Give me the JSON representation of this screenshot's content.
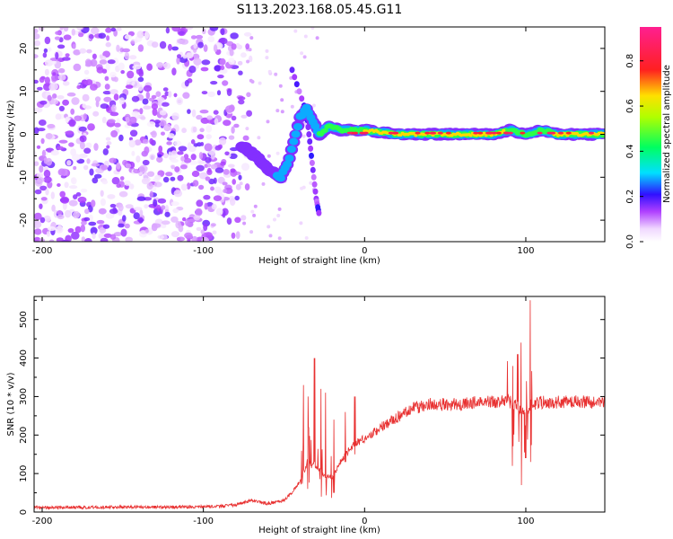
{
  "title": "S113.2023.168.05.45.G11",
  "chart_data": [
    {
      "type": "heatmap",
      "xlabel": "Height of straight line (km)",
      "ylabel": "Frequency (Hz)",
      "xlim": [
        -205,
        149
      ],
      "ylim": [
        -25,
        25
      ],
      "x_ticks": [
        -200,
        -100,
        0,
        100
      ],
      "x_tick_labels": [
        "-200",
        "-100",
        "0",
        "100"
      ],
      "y_ticks": [
        -20,
        -10,
        0,
        10,
        20
      ],
      "y_tick_labels": [
        "-20",
        "-10",
        "0",
        "10",
        "20"
      ],
      "colorbar": {
        "label": "Normalized spectral amplitude",
        "range": [
          0,
          0.95
        ],
        "ticks": [
          0,
          0.2,
          0.4,
          0.6,
          0.8
        ],
        "tick_labels": [
          "0.0",
          "0.2",
          "0.4",
          "0.6",
          "0.8"
        ],
        "colormap": "rainbow (white→violet→blue→cyan→green→yellow→red→pink)"
      },
      "features": {
        "noise_region_x": [
          -205,
          -78
        ],
        "noise_amplitude_range": [
          0.02,
          0.18
        ],
        "tone_trace": [
          [
            -82,
            -1,
            0.12
          ],
          [
            -75,
            -3,
            0.18
          ],
          [
            -68,
            -5,
            0.22
          ],
          [
            -60,
            -8,
            0.25
          ],
          [
            -52,
            -10,
            0.3
          ],
          [
            -48,
            -7,
            0.3
          ],
          [
            -44,
            -2,
            0.32
          ],
          [
            -40,
            4,
            0.35
          ],
          [
            -36,
            6,
            0.35
          ],
          [
            -32,
            3,
            0.4
          ],
          [
            -28,
            0,
            0.45
          ],
          [
            -22,
            2,
            0.5
          ],
          [
            -15,
            1,
            0.55
          ],
          [
            0,
            1,
            0.65
          ],
          [
            20,
            0,
            0.75
          ],
          [
            40,
            0,
            0.8
          ],
          [
            60,
            0,
            0.8
          ],
          [
            80,
            0,
            0.75
          ],
          [
            90,
            1,
            0.6
          ],
          [
            100,
            0,
            0.6
          ],
          [
            110,
            1,
            0.55
          ],
          [
            120,
            0,
            0.7
          ],
          [
            140,
            0,
            0.75
          ],
          [
            149,
            0,
            0.7
          ]
        ],
        "side_branch": [
          [
            -45,
            15
          ],
          [
            -36,
            5
          ],
          [
            -33,
            -5
          ],
          [
            -30,
            -15
          ],
          [
            -28,
            -19
          ]
        ]
      }
    },
    {
      "type": "line",
      "xlabel": "Height of straight line (km)",
      "ylabel": "SNR (10 * v/v)",
      "xlim": [
        -205,
        149
      ],
      "ylim": [
        0,
        560
      ],
      "x_ticks": [
        -200,
        -100,
        0,
        100
      ],
      "x_tick_labels": [
        "-200",
        "-100",
        "0",
        "100"
      ],
      "y_ticks": [
        0,
        100,
        200,
        300,
        400,
        500
      ],
      "y_tick_labels": [
        "0",
        "100",
        "200",
        "300",
        "400",
        "500"
      ],
      "color": "#e83030",
      "series": [
        {
          "x": [
            -205,
            -180,
            -150,
            -120,
            -100,
            -90,
            -80,
            -75,
            -70,
            -60,
            -50,
            -45,
            -40,
            -35,
            -30,
            -25,
            -20,
            -15,
            -10,
            -5,
            0,
            10,
            20,
            30,
            40,
            50,
            60,
            70,
            80,
            85,
            90,
            95,
            100,
            105,
            110,
            120,
            130,
            140,
            149
          ],
          "values": [
            12,
            12,
            13,
            13,
            14,
            15,
            18,
            25,
            30,
            22,
            30,
            50,
            80,
            130,
            120,
            95,
            90,
            130,
            160,
            180,
            190,
            220,
            245,
            270,
            280,
            280,
            280,
            285,
            285,
            290,
            290,
            270,
            260,
            280,
            285,
            285,
            288,
            285,
            285
          ]
        }
      ],
      "spikes": [
        [
          -38,
          110,
          330
        ],
        [
          -35,
          60,
          300
        ],
        [
          -31,
          30,
          400
        ],
        [
          -27,
          40,
          320
        ],
        [
          -24,
          70,
          310
        ],
        [
          -19,
          50,
          240
        ],
        [
          -12,
          130,
          260
        ],
        [
          -6,
          150,
          300
        ],
        [
          92,
          120,
          420
        ],
        [
          95,
          100,
          410
        ],
        [
          97,
          70,
          440
        ],
        [
          100,
          140,
          530
        ],
        [
          103,
          130,
          550
        ]
      ]
    }
  ]
}
